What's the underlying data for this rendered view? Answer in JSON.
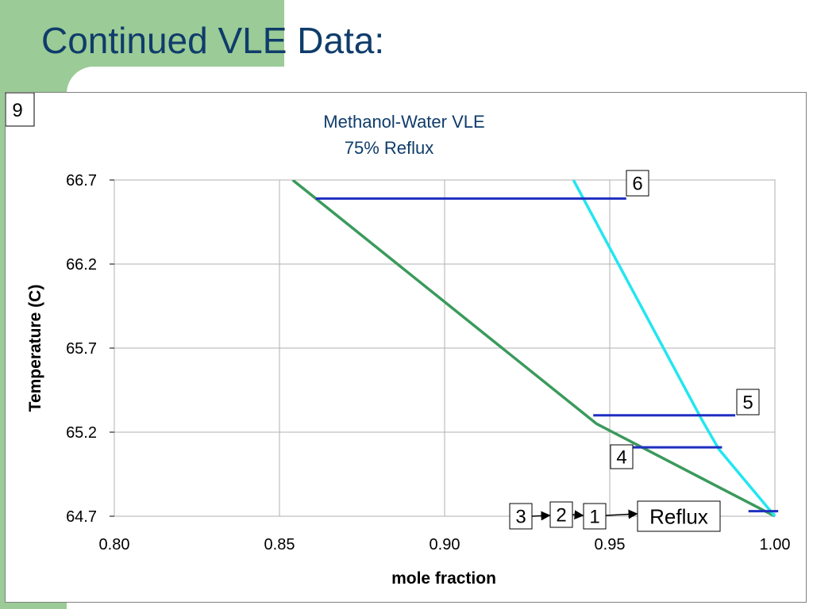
{
  "slide": {
    "title": "Continued VLE Data:",
    "slide_number": "9"
  },
  "colors": {
    "title": "#0f3c6b",
    "accent_green_bg": "#9bcb96",
    "liquid_curve": "#3a9a5c",
    "vapor_curve": "#22e6f0",
    "stage_lines": "#1f2fc0",
    "grid": "#b0b0b0"
  },
  "chart_data": {
    "type": "line",
    "title": "Methanol-Water VLE",
    "subtitle": "75% Reflux",
    "xlabel": "mole fraction",
    "ylabel": "Temperature (C)",
    "xlim": [
      0.8,
      1.0
    ],
    "ylim": [
      64.7,
      66.7
    ],
    "x_ticks": [
      "0.80",
      "0.85",
      "0.90",
      "0.95",
      "1.00"
    ],
    "y_ticks": [
      "64.7",
      "65.2",
      "65.7",
      "66.2",
      "66.7"
    ],
    "grid": true,
    "series": [
      {
        "color": "#3a9a5c",
        "x": [
          0.854,
          0.946,
          1.0
        ],
        "y": [
          66.7,
          65.25,
          64.7
        ]
      },
      {
        "color": "#22e6f0",
        "x": [
          0.939,
          0.978,
          0.983,
          1.0
        ],
        "y": [
          66.7,
          65.27,
          65.1,
          64.7
        ]
      }
    ],
    "stage_lines": [
      {
        "label": "6",
        "x1": 0.861,
        "x2": 0.955,
        "y": 66.59
      },
      {
        "label": "5",
        "x1": 0.945,
        "x2": 0.988,
        "y": 65.3
      },
      {
        "label": "4",
        "x1": 0.955,
        "x2": 0.984,
        "y": 65.11
      },
      {
        "label": "",
        "x1": 0.992,
        "x2": 1.001,
        "y": 64.73
      }
    ],
    "annotations": [
      "6",
      "5",
      "4",
      "3",
      "2",
      "1",
      "Reflux"
    ]
  }
}
